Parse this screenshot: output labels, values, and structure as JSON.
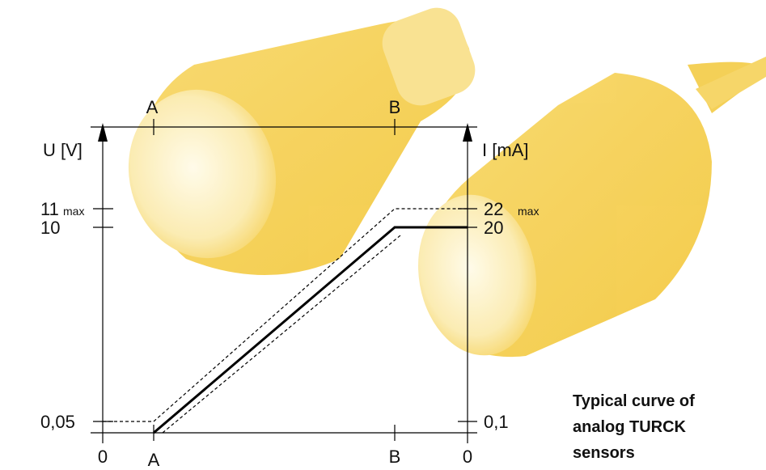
{
  "top_axis": {
    "a": "A",
    "b": "B"
  },
  "left_axis": {
    "title": "U [V]",
    "max_value": "11",
    "max_note": "max",
    "nominal": "10",
    "min": "0,05",
    "zero": "0"
  },
  "right_axis": {
    "title": "I [mA]",
    "max_value": "22",
    "max_note": "max",
    "nominal": "20",
    "min": "0,1",
    "zero": "0"
  },
  "bottom_axis": {
    "a": "A",
    "b": "B"
  },
  "caption": {
    "lines": [
      "Typical curve of",
      "analog TURCK",
      "sensors"
    ]
  }
}
